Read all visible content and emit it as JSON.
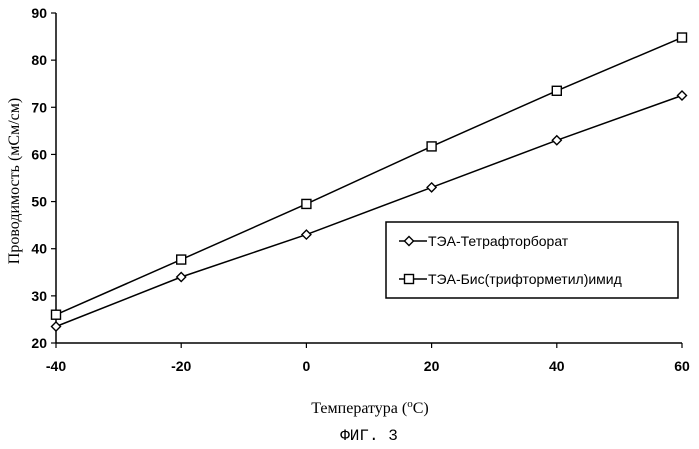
{
  "chart_data": {
    "type": "line",
    "xlabel": "Температура (",
    "xlabel_sup": "o",
    "xlabel_tail": "C)",
    "ylabel": "Проводимость (мСм/см)",
    "caption": "ФИГ. 3",
    "x": [
      -40,
      -20,
      0,
      20,
      40,
      60
    ],
    "xlim": [
      -40,
      60
    ],
    "ylim": [
      20,
      90
    ],
    "x_ticks": [
      "-40",
      "-20",
      "0",
      "20",
      "40",
      "60"
    ],
    "y_ticks": [
      "20",
      "30",
      "40",
      "50",
      "60",
      "70",
      "80",
      "90"
    ],
    "grid": false,
    "legend_position": "right",
    "series": [
      {
        "name": "ТЭА-Тетрафторборат",
        "marker": "diamond",
        "color": "#000000",
        "values": [
          23.5,
          34,
          43,
          53,
          63,
          72.5
        ]
      },
      {
        "name": "ТЭА-Бис(трифторметил)имид",
        "marker": "square",
        "color": "#000000",
        "values": [
          26,
          37.7,
          49.5,
          61.7,
          73.5,
          84.8
        ]
      }
    ]
  }
}
